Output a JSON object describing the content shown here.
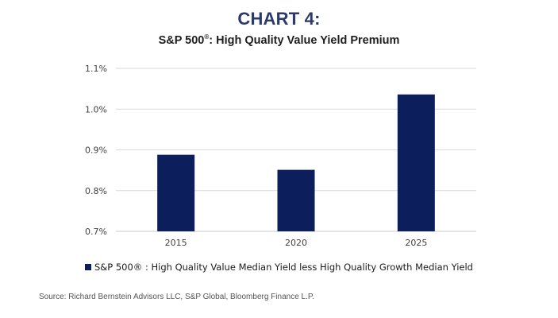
{
  "header": {
    "title": "CHART 4:",
    "subtitle_prefix": "S&P 500",
    "subtitle_mark": "®",
    "subtitle_suffix": ": High Quality Value Yield Premium"
  },
  "colors": {
    "title": "#2b3a6b",
    "bar": "#0c1f5c",
    "grid": "#d9d9d9"
  },
  "chart_data": {
    "type": "bar",
    "title": "CHART 4: S&P 500®: High Quality Value Yield Premium",
    "categories": [
      "2015",
      "2020",
      "2025"
    ],
    "series": [
      {
        "name": "S&P 500® : High Quality Value Median Yield less High Quality Growth Median Yield",
        "values": [
          0.888,
          0.851,
          1.036
        ]
      }
    ],
    "xlabel": "",
    "ylabel": "",
    "ylim": [
      0.7,
      1.1
    ],
    "yticks": [
      0.7,
      0.8,
      0.9,
      1.0,
      1.1
    ],
    "ytick_labels": [
      "0.7%",
      "0.8%",
      "0.9%",
      "1.0%",
      "1.1%"
    ],
    "value_format": "percent",
    "grid": true,
    "legend_position": "bottom"
  },
  "legend": {
    "label": "S&P 500® : High Quality Value Median Yield less High Quality Growth Median Yield"
  },
  "footer": {
    "source": "Source: Richard Bernstein Advisors LLC, S&P Global, Bloomberg Finance L.P."
  }
}
